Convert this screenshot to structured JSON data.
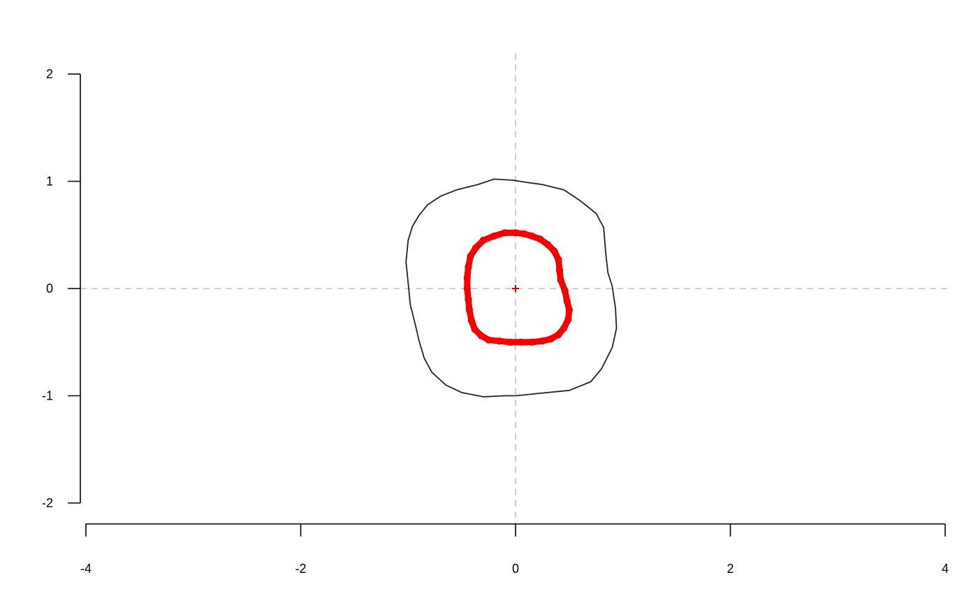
{
  "chart_data": {
    "type": "scatter",
    "title": "",
    "xlabel": "",
    "ylabel": "",
    "xlim": [
      -4,
      4
    ],
    "ylim": [
      -2,
      2
    ],
    "x_ticks": [
      {
        "value": -4,
        "label": "-4"
      },
      {
        "value": -2,
        "label": "-2"
      },
      {
        "value": 0,
        "label": "0"
      },
      {
        "value": 2,
        "label": "2"
      },
      {
        "value": 4,
        "label": "4"
      }
    ],
    "y_ticks": [
      {
        "value": -2,
        "label": "-2"
      },
      {
        "value": -1,
        "label": "-1"
      },
      {
        "value": 0,
        "label": "0"
      },
      {
        "value": 1,
        "label": "1"
      },
      {
        "value": 2,
        "label": "2"
      }
    ],
    "reference_lines": {
      "x": 0,
      "y": 0,
      "style": "dashed",
      "color": "#bfbfbf"
    },
    "center_marker": {
      "x": 0,
      "y": 0,
      "symbol": "plus",
      "color": "#cc0000"
    },
    "grid": false,
    "legend": "none",
    "series": [
      {
        "style": "line",
        "color": "#222222",
        "points": [
          [
            -0.2,
            1.02
          ],
          [
            -0.02,
            1.01
          ],
          [
            0.1,
            0.99
          ],
          [
            0.25,
            0.97
          ],
          [
            0.45,
            0.92
          ],
          [
            0.6,
            0.82
          ],
          [
            0.75,
            0.7
          ],
          [
            0.82,
            0.57
          ],
          [
            0.84,
            0.33
          ],
          [
            0.86,
            0.15
          ],
          [
            0.9,
            0.02
          ],
          [
            0.93,
            -0.18
          ],
          [
            0.94,
            -0.37
          ],
          [
            0.9,
            -0.55
          ],
          [
            0.8,
            -0.75
          ],
          [
            0.7,
            -0.87
          ],
          [
            0.5,
            -0.95
          ],
          [
            0.2,
            -0.98
          ],
          [
            0,
            -1.0
          ],
          [
            -0.1,
            -1.0
          ],
          [
            -0.3,
            -1.01
          ],
          [
            -0.5,
            -0.97
          ],
          [
            -0.65,
            -0.9
          ],
          [
            -0.78,
            -0.78
          ],
          [
            -0.85,
            -0.65
          ],
          [
            -0.9,
            -0.48
          ],
          [
            -0.93,
            -0.35
          ],
          [
            -0.98,
            -0.15
          ],
          [
            -1.0,
            0.05
          ],
          [
            -1.02,
            0.25
          ],
          [
            -1.0,
            0.45
          ],
          [
            -0.96,
            0.58
          ],
          [
            -0.9,
            0.68
          ],
          [
            -0.82,
            0.78
          ],
          [
            -0.7,
            0.86
          ],
          [
            -0.55,
            0.92
          ],
          [
            -0.35,
            0.97
          ]
        ]
      },
      {
        "style": "points",
        "color": "#ff0000",
        "points": [
          [
            0,
            0.52
          ],
          [
            0.08,
            0.51
          ],
          [
            0.15,
            0.49
          ],
          [
            0.23,
            0.46
          ],
          [
            0.3,
            0.41
          ],
          [
            0.36,
            0.35
          ],
          [
            0.4,
            0.27
          ],
          [
            0.41,
            0.17
          ],
          [
            0.42,
            0.08
          ],
          [
            0.46,
            -0.02
          ],
          [
            0.48,
            -0.12
          ],
          [
            0.5,
            -0.2
          ],
          [
            0.49,
            -0.29
          ],
          [
            0.45,
            -0.37
          ],
          [
            0.4,
            -0.43
          ],
          [
            0.33,
            -0.47
          ],
          [
            0.25,
            -0.49
          ],
          [
            0.15,
            -0.5
          ],
          [
            0.05,
            -0.5
          ],
          [
            -0.05,
            -0.5
          ],
          [
            -0.15,
            -0.49
          ],
          [
            -0.25,
            -0.48
          ],
          [
            -0.32,
            -0.44
          ],
          [
            -0.38,
            -0.38
          ],
          [
            -0.41,
            -0.3
          ],
          [
            -0.43,
            -0.2
          ],
          [
            -0.44,
            -0.1
          ],
          [
            -0.45,
            0
          ],
          [
            -0.45,
            0.1
          ],
          [
            -0.44,
            0.2
          ],
          [
            -0.42,
            0.3
          ],
          [
            -0.37,
            0.38
          ],
          [
            -0.3,
            0.45
          ],
          [
            -0.2,
            0.49
          ],
          [
            -0.1,
            0.52
          ]
        ]
      }
    ]
  }
}
